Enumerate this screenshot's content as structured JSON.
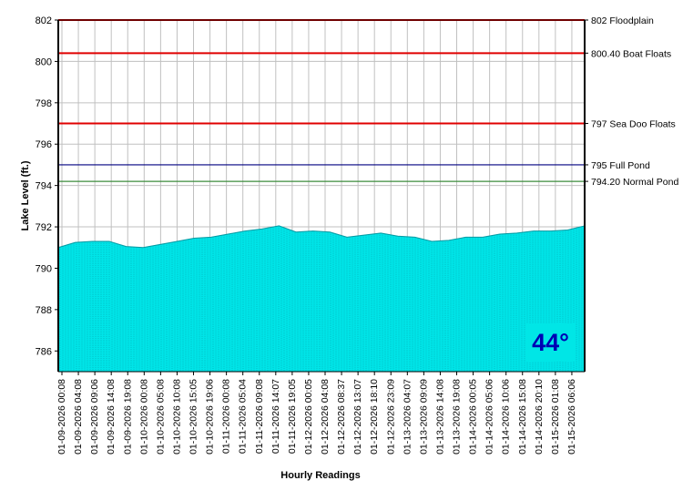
{
  "chart_data": {
    "type": "area",
    "xlabel": "Hourly Readings",
    "ylabel": "Lake Level (ft.)",
    "ylim": [
      785,
      802
    ],
    "yticks": [
      786,
      788,
      790,
      792,
      794,
      796,
      798,
      800,
      802
    ],
    "grid": true,
    "fill_color": "#00e5e8",
    "categories": [
      "01-09-2026 00:08",
      "01-09-2026 04:08",
      "01-09-2026 09:06",
      "01-09-2026 14:08",
      "01-09-2026 19:08",
      "01-10-2026 00:08",
      "01-10-2026 05:08",
      "01-10-2026 10:08",
      "01-10-2026 15:05",
      "01-10-2026 19:06",
      "01-11-2026 00:08",
      "01-11-2026 05:04",
      "01-11-2026 09:08",
      "01-11-2026 14:07",
      "01-11-2026 19:05",
      "01-12-2026 00:05",
      "01-12-2026 04:08",
      "01-12-2026 08:37",
      "01-12-2026 13:07",
      "01-12-2026 18:10",
      "01-12-2026 23:09",
      "01-13-2026 04:07",
      "01-13-2026 09:09",
      "01-13-2026 14:08",
      "01-13-2026 19:08",
      "01-14-2026 00:05",
      "01-14-2026 05:06",
      "01-14-2026 10:06",
      "01-14-2026 15:08",
      "01-14-2026 20:10",
      "01-15-2026 01:08",
      "01-15-2026 06:06"
    ],
    "values": [
      791.0,
      791.25,
      791.3,
      791.3,
      791.05,
      791.0,
      791.15,
      791.3,
      791.45,
      791.5,
      791.65,
      791.8,
      791.9,
      792.05,
      791.75,
      791.8,
      791.75,
      791.5,
      791.6,
      791.7,
      791.55,
      791.5,
      791.3,
      791.35,
      791.5,
      791.5,
      791.65,
      791.7,
      791.8,
      791.8,
      791.85,
      792.05
    ],
    "reference_lines": [
      {
        "value": 802,
        "label": "802 Floodplain",
        "color": "#e00000"
      },
      {
        "value": 800.4,
        "label": "800.40 Boat Floats",
        "color": "#e00000"
      },
      {
        "value": 797,
        "label": "797 Sea Doo Floats",
        "color": "#e00000"
      },
      {
        "value": 795,
        "label": "795 Full Pond",
        "color": "#000080"
      },
      {
        "value": 794.2,
        "label": "794.20 Normal Pond",
        "color": "#3c8c3c"
      }
    ]
  },
  "temperature_badge": "44°"
}
